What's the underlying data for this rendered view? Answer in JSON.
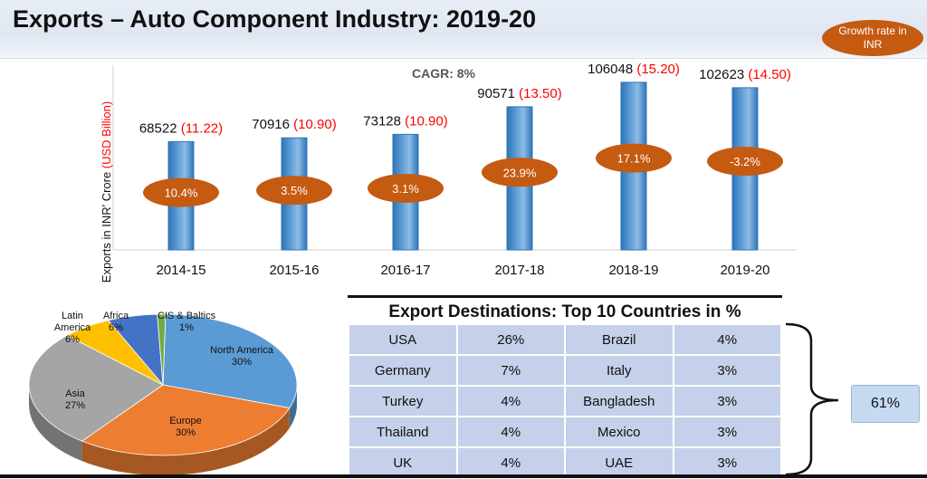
{
  "header": {
    "title": "Exports – Auto Component Industry: 2019-20",
    "growth_badge": "Growth rate in INR"
  },
  "chart_data": [
    {
      "type": "bar",
      "title": "CAGR: 8%",
      "ylabel_main": "Exports in INR' Crore",
      "ylabel_secondary": "(USD Billion)",
      "categories": [
        "2014-15",
        "2015-16",
        "2016-17",
        "2017-18",
        "2018-19",
        "2019-20"
      ],
      "values_inr_crore": [
        68522,
        70916,
        73128,
        90571,
        106048,
        102623
      ],
      "values_usd_billion": [
        "11.22",
        "10.90",
        "10.90",
        "13.50",
        "15.20",
        "14.50"
      ],
      "growth_rate": [
        "10.4%",
        "3.5%",
        "3.1%",
        "23.9%",
        "17.1%",
        "-3.2%"
      ],
      "ylim": [
        0,
        110000
      ],
      "colors": {
        "bar": "#5b9bd5",
        "bar_dark": "#2e75b6",
        "usd": "#ff0000",
        "growth": "#c55a11"
      }
    },
    {
      "type": "pie",
      "slices": [
        {
          "label": "North America",
          "value": 30,
          "display": "30%",
          "color": "#5b9bd5"
        },
        {
          "label": "Europe",
          "value": 30,
          "display": "30%",
          "color": "#ed7d31"
        },
        {
          "label": "Asia",
          "value": 27,
          "display": "27%",
          "color": "#a5a5a5"
        },
        {
          "label": "Latin America",
          "value": 6,
          "display": "6%",
          "color": "#ffc000"
        },
        {
          "label": "Africa",
          "value": 6,
          "display": "6%",
          "color": "#4472c4"
        },
        {
          "label": "CIS & Baltics",
          "value": 1,
          "display": "1%",
          "color": "#70ad47"
        }
      ]
    }
  ],
  "destinations": {
    "title": "Export Destinations: Top 10 Countries in %",
    "rows": [
      {
        "c1": "USA",
        "p1": "26%",
        "c2": "Brazil",
        "p2": "4%"
      },
      {
        "c1": "Germany",
        "p1": "7%",
        "c2": "Italy",
        "p2": "3%"
      },
      {
        "c1": "Turkey",
        "p1": "4%",
        "c2": "Bangladesh",
        "p2": "3%"
      },
      {
        "c1": "Thailand",
        "p1": "4%",
        "c2": "Mexico",
        "p2": "3%"
      },
      {
        "c1": "UK",
        "p1": "4%",
        "c2": "UAE",
        "p2": "3%"
      }
    ],
    "total_share": "61%"
  }
}
